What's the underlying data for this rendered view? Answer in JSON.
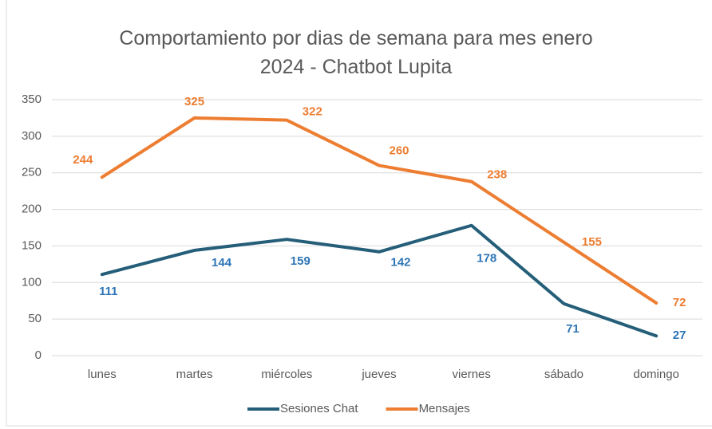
{
  "chart_data": {
    "type": "line",
    "title": "Comportamiento por dias de semana para mes enero 2024 - Chatbot Lupita",
    "categories": [
      "lunes",
      "martes",
      "miércoles",
      "jueves",
      "viernes",
      "sábado",
      "domingo"
    ],
    "series": [
      {
        "name": "Sesiones Chat",
        "color": "#255e79",
        "label_color": "#2e75b6",
        "values": [
          111,
          144,
          159,
          142,
          178,
          71,
          27
        ]
      },
      {
        "name": "Mensajes",
        "color": "#ed7d31",
        "label_color": "#ed7d31",
        "values": [
          244,
          325,
          322,
          260,
          238,
          155,
          72
        ]
      }
    ],
    "ylim": [
      0,
      350
    ],
    "yticks": [
      0,
      50,
      100,
      150,
      200,
      250,
      300,
      350
    ],
    "grid": true,
    "legend": "bottom"
  }
}
